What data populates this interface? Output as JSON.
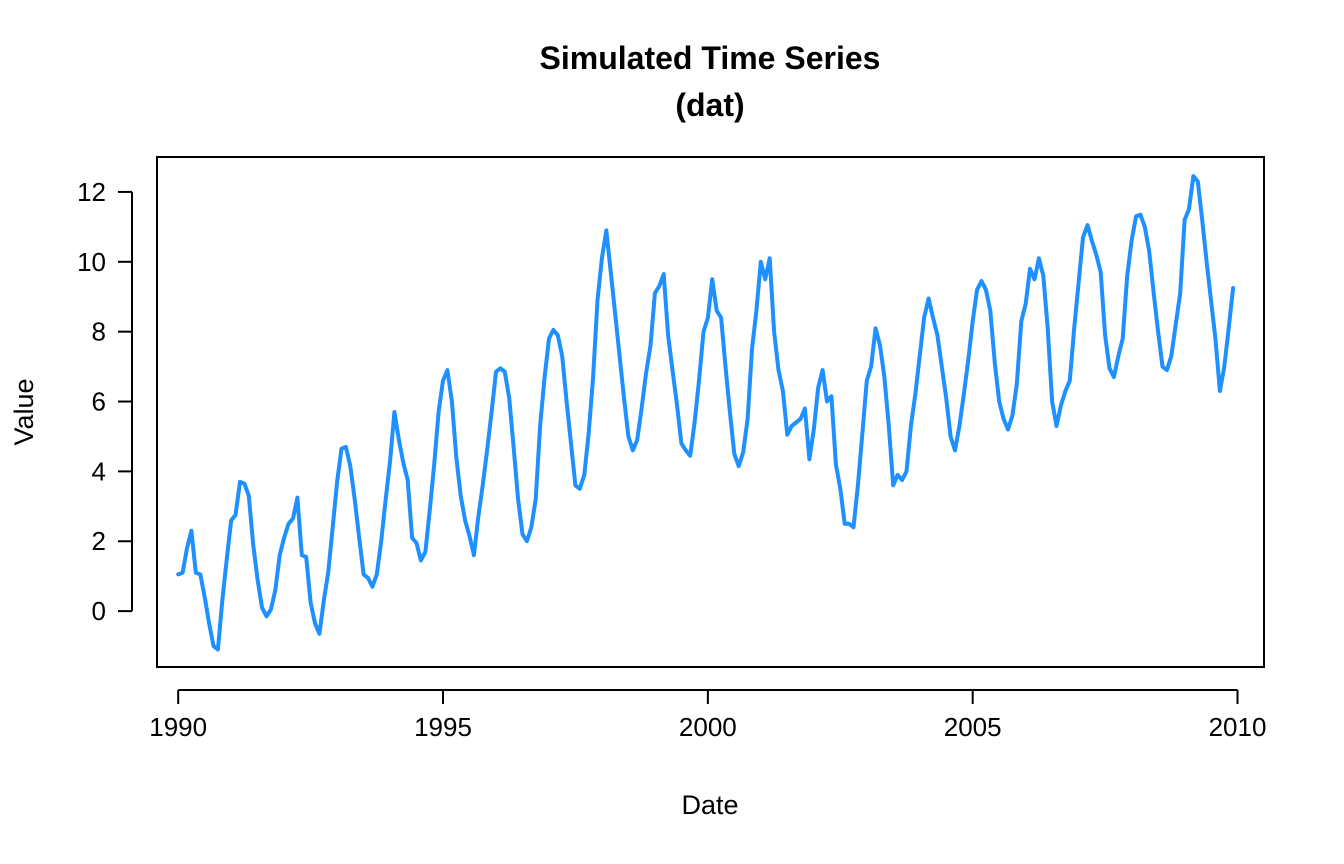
{
  "chart_data": {
    "type": "line",
    "title": "Simulated Time Series",
    "subtitle": "(dat)",
    "xlabel": "Date",
    "ylabel": "Value",
    "xlim": [
      1989.6,
      2010.5
    ],
    "ylim": [
      -1.6,
      13.0
    ],
    "x_ticks": [
      1990,
      1995,
      2000,
      2005,
      2010
    ],
    "y_ticks": [
      0,
      2,
      4,
      6,
      8,
      10,
      12
    ],
    "x_tick_labels": [
      "1990",
      "1995",
      "2000",
      "2005",
      "2010"
    ],
    "y_tick_labels": [
      "0",
      "2",
      "4",
      "6",
      "8",
      "10",
      "12"
    ],
    "grid": false,
    "line_color": "#1E90FF",
    "series": [
      {
        "x": [
          1990.0,
          1990.083,
          1990.167,
          1990.25,
          1990.333,
          1990.417,
          1990.5,
          1990.583,
          1990.667,
          1990.75,
          1990.833,
          1990.917,
          1991.0,
          1991.083,
          1991.167,
          1991.25,
          1991.333,
          1991.417,
          1991.5,
          1991.583,
          1991.667,
          1991.75,
          1991.833,
          1991.917,
          1992.0,
          1992.083,
          1992.167,
          1992.25,
          1992.333,
          1992.417,
          1992.5,
          1992.583,
          1992.667,
          1992.75,
          1992.833,
          1992.917,
          1993.0,
          1993.083,
          1993.167,
          1993.25,
          1993.333,
          1993.417,
          1993.5,
          1993.583,
          1993.667,
          1993.75,
          1993.833,
          1993.917,
          1994.0,
          1994.083,
          1994.167,
          1994.25,
          1994.333,
          1994.417,
          1994.5,
          1994.583,
          1994.667,
          1994.75,
          1994.833,
          1994.917,
          1995.0,
          1995.083,
          1995.167,
          1995.25,
          1995.333,
          1995.417,
          1995.5,
          1995.583,
          1995.667,
          1995.75,
          1995.833,
          1995.917,
          1996.0,
          1996.083,
          1996.167,
          1996.25,
          1996.333,
          1996.417,
          1996.5,
          1996.583,
          1996.667,
          1996.75,
          1996.833,
          1996.917,
          1997.0,
          1997.083,
          1997.167,
          1997.25,
          1997.333,
          1997.417,
          1997.5,
          1997.583,
          1997.667,
          1997.75,
          1997.833,
          1997.917,
          1998.0,
          1998.083,
          1998.167,
          1998.25,
          1998.333,
          1998.417,
          1998.5,
          1998.583,
          1998.667,
          1998.75,
          1998.833,
          1998.917,
          1999.0,
          1999.083,
          1999.167,
          1999.25,
          1999.333,
          1999.417,
          1999.5,
          1999.583,
          1999.667,
          1999.75,
          1999.833,
          1999.917,
          2000.0,
          2000.083,
          2000.167,
          2000.25,
          2000.333,
          2000.417,
          2000.5,
          2000.583,
          2000.667,
          2000.75,
          2000.833,
          2000.917,
          2001.0,
          2001.083,
          2001.167,
          2001.25,
          2001.333,
          2001.417,
          2001.5,
          2001.583,
          2001.667,
          2001.75,
          2001.833,
          2001.917,
          2002.0,
          2002.083,
          2002.167,
          2002.25,
          2002.333,
          2002.417,
          2002.5,
          2002.583,
          2002.667,
          2002.75,
          2002.833,
          2002.917,
          2003.0,
          2003.083,
          2003.167,
          2003.25,
          2003.333,
          2003.417,
          2003.5,
          2003.583,
          2003.667,
          2003.75,
          2003.833,
          2003.917,
          2004.0,
          2004.083,
          2004.167,
          2004.25,
          2004.333,
          2004.417,
          2004.5,
          2004.583,
          2004.667,
          2004.75,
          2004.833,
          2004.917,
          2005.0,
          2005.083,
          2005.167,
          2005.25,
          2005.333,
          2005.417,
          2005.5,
          2005.583,
          2005.667,
          2005.75,
          2005.833,
          2005.917,
          2006.0,
          2006.083,
          2006.167,
          2006.25,
          2006.333,
          2006.417,
          2006.5,
          2006.583,
          2006.667,
          2006.75,
          2006.833,
          2006.917,
          2007.0,
          2007.083,
          2007.167,
          2007.25,
          2007.333,
          2007.417,
          2007.5,
          2007.583,
          2007.667,
          2007.75,
          2007.833,
          2007.917,
          2008.0,
          2008.083,
          2008.167,
          2008.25,
          2008.333,
          2008.417,
          2008.5,
          2008.583,
          2008.667,
          2008.75,
          2008.833,
          2008.917,
          2009.0,
          2009.083,
          2009.167,
          2009.25,
          2009.333,
          2009.417,
          2009.5,
          2009.583,
          2009.667,
          2009.75,
          2009.833,
          2009.917
        ],
        "values": [
          1.05,
          1.1,
          1.8,
          2.3,
          1.1,
          1.05,
          0.4,
          -0.35,
          -1.0,
          -1.1,
          0.3,
          1.5,
          2.6,
          2.75,
          3.7,
          3.65,
          3.3,
          1.9,
          0.9,
          0.1,
          -0.15,
          0.05,
          0.6,
          1.6,
          2.1,
          2.5,
          2.65,
          3.25,
          1.6,
          1.55,
          0.25,
          -0.35,
          -0.65,
          0.3,
          1.1,
          2.4,
          3.7,
          4.65,
          4.7,
          4.15,
          3.2,
          2.1,
          1.05,
          0.95,
          0.7,
          1.05,
          2.0,
          3.2,
          4.3,
          5.7,
          4.9,
          4.25,
          3.75,
          2.1,
          1.95,
          1.45,
          1.7,
          2.9,
          4.2,
          5.7,
          6.6,
          6.9,
          6.0,
          4.4,
          3.3,
          2.6,
          2.15,
          1.6,
          2.7,
          3.6,
          4.6,
          5.7,
          6.85,
          6.95,
          6.85,
          6.1,
          4.7,
          3.2,
          2.2,
          2.0,
          2.4,
          3.2,
          5.3,
          6.7,
          7.8,
          8.05,
          7.9,
          7.3,
          6.0,
          4.8,
          3.6,
          3.5,
          3.9,
          5.1,
          6.7,
          8.9,
          10.1,
          10.9,
          9.7,
          8.5,
          7.3,
          6.1,
          5.0,
          4.6,
          4.9,
          5.8,
          6.8,
          7.6,
          9.1,
          9.3,
          9.65,
          7.9,
          6.9,
          5.9,
          4.8,
          4.6,
          4.45,
          5.4,
          6.6,
          8.0,
          8.4,
          9.5,
          8.6,
          8.4,
          7.0,
          5.7,
          4.5,
          4.15,
          4.55,
          5.5,
          7.5,
          8.6,
          10.0,
          9.5,
          10.1,
          8.0,
          6.9,
          6.3,
          5.05,
          5.3,
          5.4,
          5.5,
          5.8,
          4.35,
          5.2,
          6.4,
          6.9,
          6.0,
          6.15,
          4.2,
          3.5,
          2.5,
          2.5,
          2.4,
          3.6,
          5.1,
          6.6,
          7.0,
          8.1,
          7.6,
          6.7,
          5.3,
          3.6,
          3.9,
          3.75,
          4.0,
          5.3,
          6.2,
          7.3,
          8.4,
          8.95,
          8.4,
          7.9,
          7.0,
          6.1,
          5.0,
          4.6,
          5.3,
          6.2,
          7.2,
          8.3,
          9.2,
          9.45,
          9.2,
          8.6,
          7.1,
          6.0,
          5.5,
          5.2,
          5.6,
          6.5,
          8.3,
          8.8,
          9.8,
          9.5,
          10.1,
          9.6,
          8.1,
          6.0,
          5.3,
          5.9,
          6.3,
          6.6,
          8.1,
          9.4,
          10.7,
          11.05,
          10.6,
          10.2,
          9.7,
          7.9,
          6.95,
          6.7,
          7.3,
          7.8,
          9.6,
          10.6,
          11.3,
          11.35,
          11.0,
          10.3,
          9.1,
          8.0,
          7.0,
          6.9,
          7.3,
          8.2,
          9.1,
          11.2,
          11.5,
          12.45,
          12.3,
          11.2,
          10.0,
          8.9,
          7.8,
          6.3,
          7.0,
          8.1,
          9.25
        ]
      }
    ]
  }
}
